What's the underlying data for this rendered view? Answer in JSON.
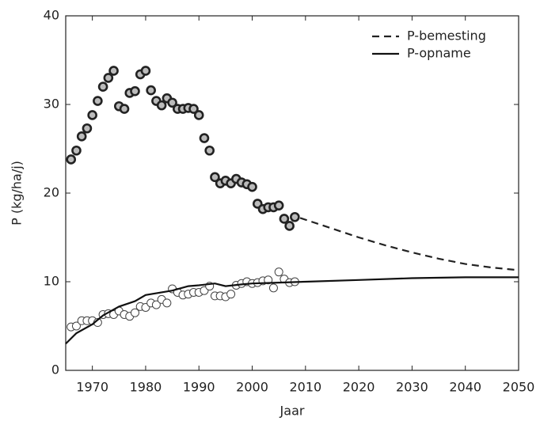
{
  "chart_data": {
    "type": "line",
    "x_label": "Jaar",
    "y_label": "P (kg/ha/j)",
    "xlim": [
      1965,
      2050
    ],
    "xticks": [
      1970,
      1980,
      1990,
      2000,
      2010,
      2020,
      2030,
      2040,
      2050
    ],
    "ylim": [
      0,
      40
    ],
    "yticks": [
      0,
      10,
      20,
      30,
      40
    ],
    "legend": "upper right",
    "grid": false,
    "series": [
      {
        "type": "scatter",
        "marker": "thick",
        "color": "#222",
        "x": [
          1966,
          1967,
          1968,
          1969,
          1970,
          1971,
          1972,
          1973,
          1974,
          1975,
          1976,
          1977,
          1978,
          1979,
          1980,
          1981,
          1982,
          1983,
          1984,
          1985,
          1986,
          1987,
          1988,
          1989,
          1990,
          1991,
          1992,
          1993,
          1994,
          1995,
          1996,
          1997,
          1998,
          1999,
          2000,
          2001,
          2002,
          2003,
          2004,
          2005,
          2006,
          2007,
          2008
        ],
        "values": [
          23.8,
          24.8,
          26.4,
          27.3,
          28.8,
          30.4,
          32.0,
          33.0,
          33.8,
          29.8,
          29.5,
          31.3,
          31.5,
          33.4,
          33.8,
          31.6,
          30.4,
          29.9,
          30.7,
          30.2,
          29.5,
          29.5,
          29.6,
          29.5,
          28.8,
          26.2,
          24.8,
          21.8,
          21.1,
          21.4,
          21.1,
          21.6,
          21.2,
          21.0,
          20.7,
          18.8,
          18.2,
          18.4,
          18.4,
          18.6,
          17.1,
          16.3,
          17.3
        ]
      },
      {
        "type": "line",
        "name": "P-bemesting",
        "dash": true,
        "color": "#222",
        "x": [
          2009,
          2015,
          2020,
          2025,
          2030,
          2035,
          2040,
          2045,
          2050
        ],
        "values": [
          17.2,
          16.0,
          15.0,
          14.1,
          13.3,
          12.6,
          12.0,
          11.6,
          11.3
        ]
      },
      {
        "type": "scatter",
        "marker": "thin",
        "color": "#444",
        "x": [
          1966,
          1967,
          1968,
          1969,
          1970,
          1971,
          1972,
          1973,
          1974,
          1975,
          1976,
          1977,
          1978,
          1979,
          1980,
          1981,
          1982,
          1983,
          1984,
          1985,
          1986,
          1987,
          1988,
          1989,
          1990,
          1991,
          1992,
          1993,
          1994,
          1995,
          1996,
          1997,
          1998,
          1999,
          2000,
          2001,
          2002,
          2003,
          2004,
          2005,
          2006,
          2007,
          2008
        ],
        "values": [
          4.9,
          5.0,
          5.6,
          5.6,
          5.6,
          5.4,
          6.3,
          6.4,
          6.3,
          6.7,
          6.3,
          6.1,
          6.5,
          7.2,
          7.1,
          7.6,
          7.4,
          8.0,
          7.6,
          9.2,
          8.8,
          8.5,
          8.6,
          8.8,
          8.8,
          9.0,
          9.5,
          8.4,
          8.4,
          8.3,
          8.6,
          9.6,
          9.8,
          10.0,
          9.8,
          9.9,
          10.1,
          10.2,
          9.3,
          11.1,
          10.3,
          9.9,
          10.0
        ]
      },
      {
        "type": "line",
        "name": "P-opname",
        "dash": false,
        "color": "#111",
        "x": [
          1965,
          1967,
          1970,
          1972,
          1975,
          1978,
          1980,
          1985,
          1988,
          1990,
          1993,
          1995,
          1998,
          2000,
          2005,
          2010,
          2020,
          2030,
          2040,
          2050
        ],
        "values": [
          3.0,
          4.2,
          5.2,
          6.2,
          7.2,
          7.8,
          8.5,
          9.0,
          9.5,
          9.6,
          9.8,
          9.5,
          9.7,
          9.8,
          9.9,
          10.0,
          10.2,
          10.4,
          10.5,
          10.5
        ]
      }
    ]
  }
}
